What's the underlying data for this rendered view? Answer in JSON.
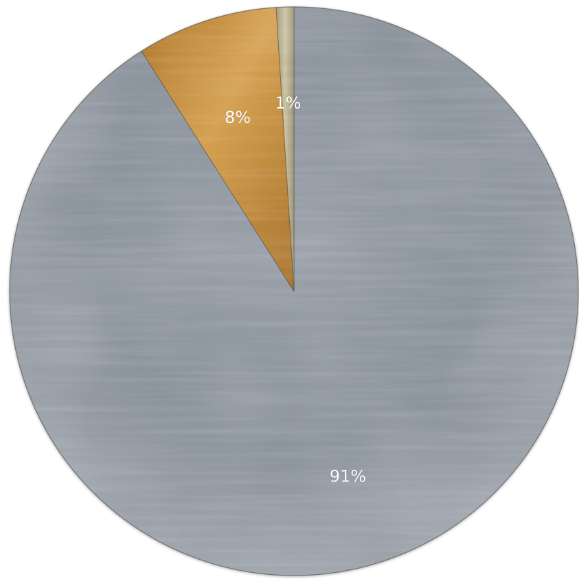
{
  "chart_data": {
    "type": "pie",
    "start_angle_deg": 0,
    "direction": "clockwise",
    "slices": [
      {
        "label": "91%",
        "value": 91,
        "color": "#8e969f",
        "texture": "brushed-silver"
      },
      {
        "label": "8%",
        "value": 8,
        "color": "#c08a3c",
        "texture": "brushed-gold"
      },
      {
        "label": "1%",
        "value": 1,
        "color": "#b2a98a",
        "texture": "brushed-brass"
      }
    ],
    "title": "",
    "legend": "none"
  }
}
